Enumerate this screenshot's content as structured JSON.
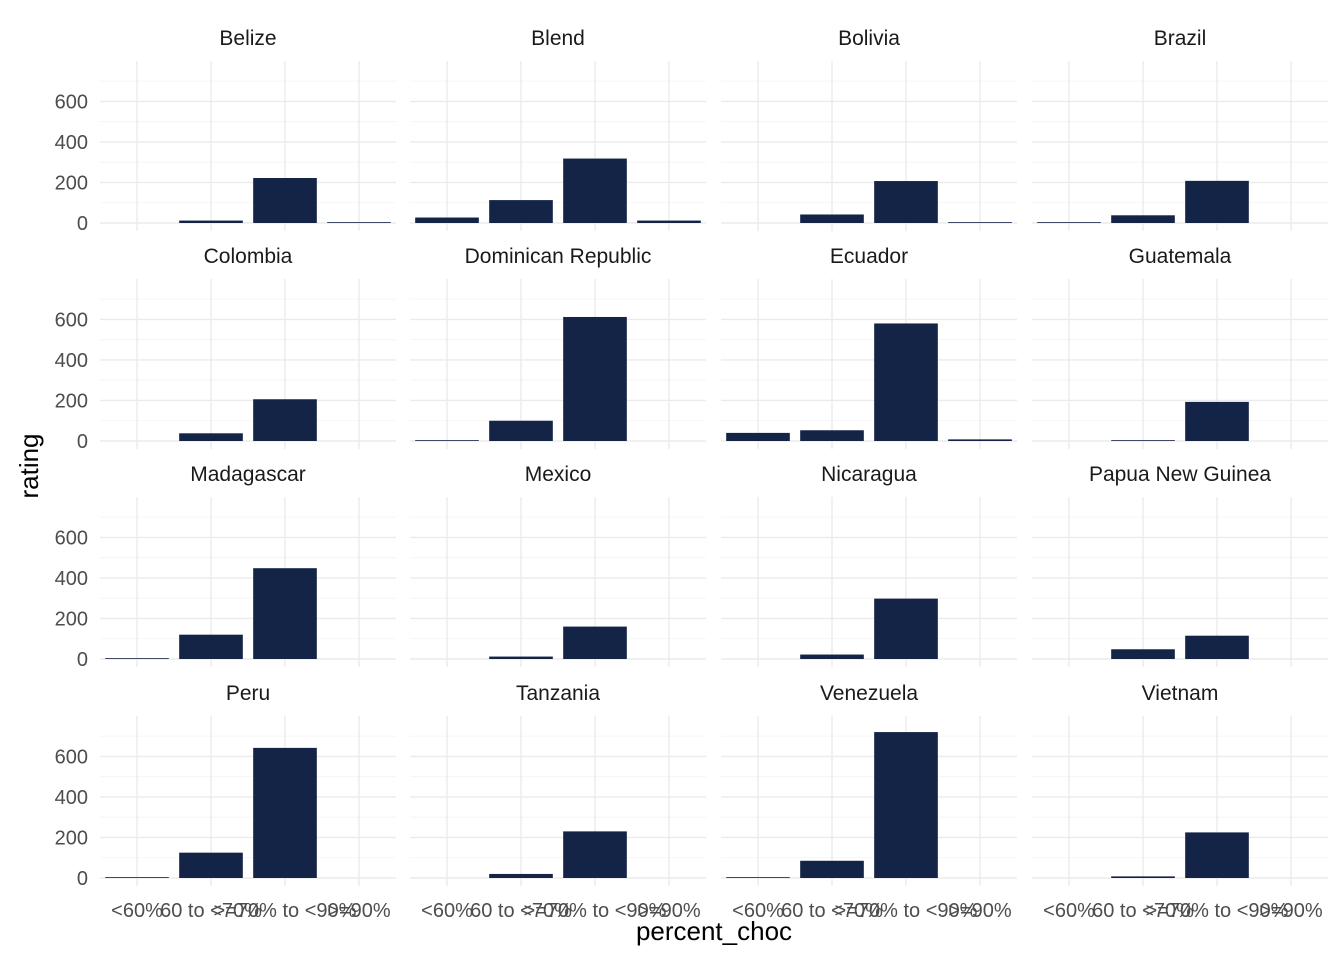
{
  "chart_data": {
    "type": "bar",
    "facet": "country",
    "xlabel": "percent_choc",
    "ylabel": "rating",
    "categories": [
      "<60%",
      "60 to <70%",
      ">=70% to <90%",
      ">=90%"
    ],
    "ylim": [
      0,
      750
    ],
    "yticks": [
      0,
      200,
      400,
      600
    ],
    "grid": true,
    "bar_color": "#132446",
    "panels": [
      {
        "name": "Belize",
        "values": [
          0,
          12,
          222,
          4
        ]
      },
      {
        "name": "Blend",
        "values": [
          27,
          113,
          318,
          12
        ]
      },
      {
        "name": "Bolivia",
        "values": [
          0,
          42,
          207,
          4
        ]
      },
      {
        "name": "Brazil",
        "values": [
          4,
          38,
          208,
          0
        ]
      },
      {
        "name": "Colombia",
        "values": [
          0,
          38,
          206,
          0
        ]
      },
      {
        "name": "Dominican Republic",
        "values": [
          4,
          100,
          612,
          0
        ]
      },
      {
        "name": "Ecuador",
        "values": [
          40,
          53,
          580,
          8
        ]
      },
      {
        "name": "Guatemala",
        "values": [
          0,
          4,
          193,
          0
        ]
      },
      {
        "name": "Madagascar",
        "values": [
          4,
          120,
          448,
          0
        ]
      },
      {
        "name": "Mexico",
        "values": [
          0,
          12,
          160,
          0
        ]
      },
      {
        "name": "Nicaragua",
        "values": [
          0,
          22,
          298,
          0
        ]
      },
      {
        "name": "Papua New Guinea",
        "values": [
          0,
          48,
          115,
          0
        ]
      },
      {
        "name": "Peru",
        "values": [
          4,
          125,
          642,
          0
        ]
      },
      {
        "name": "Tanzania",
        "values": [
          0,
          20,
          230,
          0
        ]
      },
      {
        "name": "Venezuela",
        "values": [
          4,
          85,
          720,
          0
        ]
      },
      {
        "name": "Vietnam",
        "values": [
          0,
          8,
          225,
          0
        ]
      }
    ]
  }
}
